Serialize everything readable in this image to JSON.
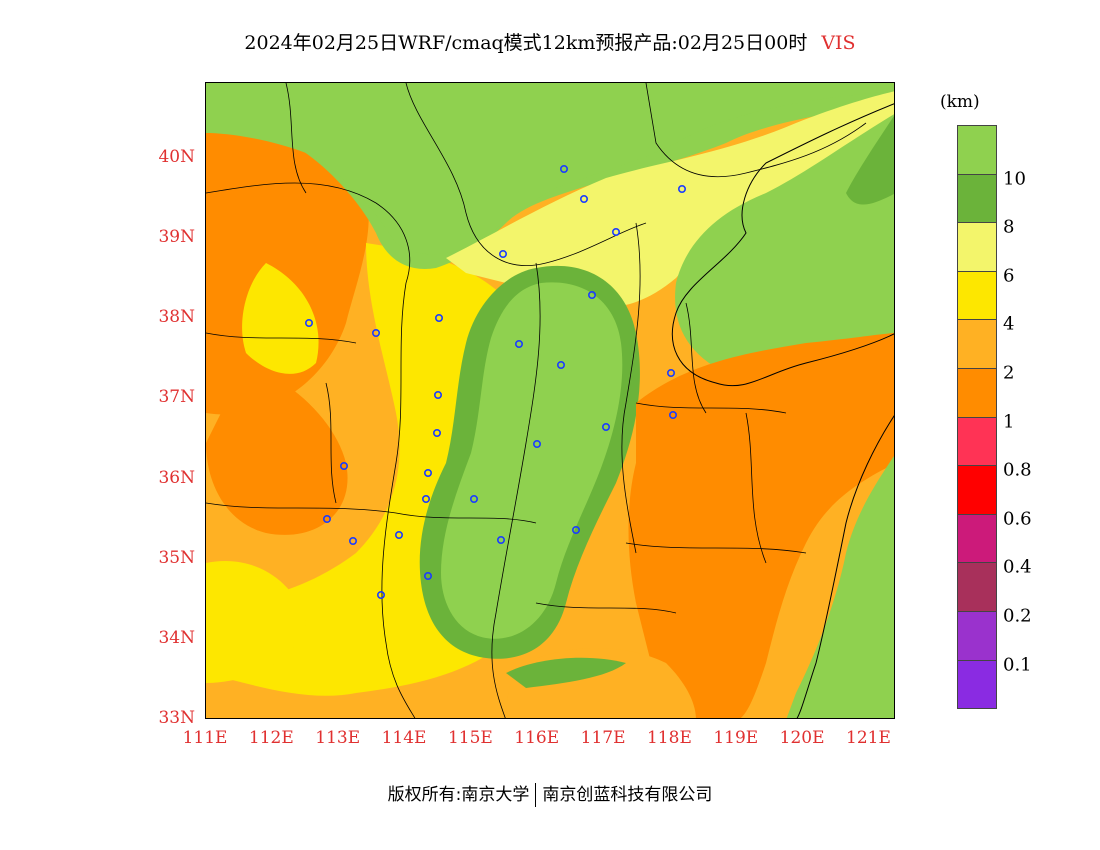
{
  "title": {
    "main": "2024年02月25日WRF/cmaq模式12km预报产品:02月25日00时",
    "variable": "VIS"
  },
  "map": {
    "lon_range": [
      111,
      121.4
    ],
    "lat_range": [
      33,
      40.95
    ],
    "lat_labels": [
      "40N",
      "39N",
      "38N",
      "37N",
      "36N",
      "35N",
      "34N",
      "33N"
    ],
    "lon_labels": [
      "111E",
      "112E",
      "113E",
      "114E",
      "115E",
      "116E",
      "117E",
      "118E",
      "119E",
      "120E",
      "121E"
    ],
    "label_color": "#e03030"
  },
  "legend": {
    "unit": "(km)",
    "colors": [
      "#8fd14f",
      "#6bb33a",
      "#f3f56b",
      "#fde700",
      "#ffb123",
      "#ff8c00",
      "#ff3355",
      "#ff0000",
      "#cc1a7a",
      "#a8305b",
      "#9a32cd",
      "#8a2be2"
    ],
    "labels": [
      "10",
      "8",
      "6",
      "4",
      "2",
      "1",
      "0.8",
      "0.6",
      "0.4",
      "0.2",
      "0.1"
    ]
  },
  "footer": {
    "owner": "版权所有:南京大学",
    "company": "南京创蓝科技有限公司"
  }
}
